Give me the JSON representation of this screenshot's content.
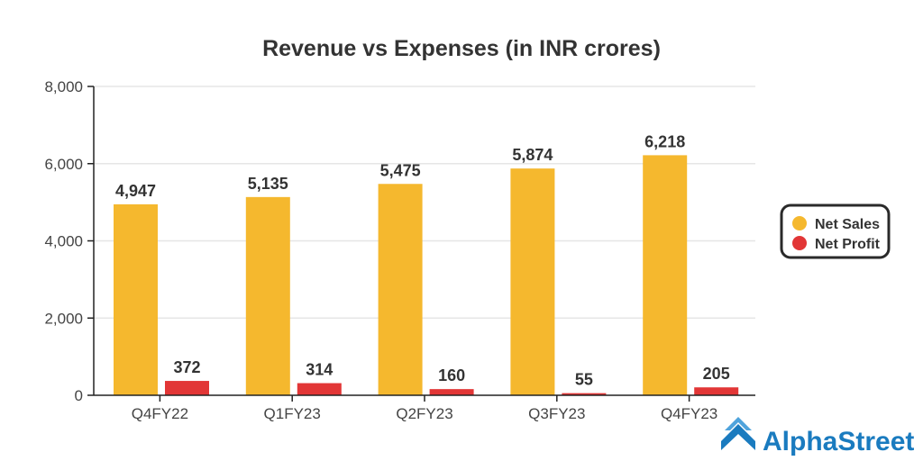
{
  "chart_data": {
    "type": "bar",
    "title": "Revenue vs Expenses (in INR crores)",
    "xlabel": "",
    "ylabel": "",
    "categories": [
      "Q4FY22",
      "Q1FY23",
      "Q2FY23",
      "Q3FY23",
      "Q4FY23"
    ],
    "series": [
      {
        "name": "Net Sales",
        "values": [
          4947,
          5135,
          5475,
          5874,
          6218
        ],
        "labels": [
          "4,947",
          "5,135",
          "5,475",
          "5,874",
          "6,218"
        ],
        "color": "#f5b82e"
      },
      {
        "name": "Net Profit",
        "values": [
          372,
          314,
          160,
          55,
          205
        ],
        "labels": [
          "372",
          "314",
          "160",
          "55",
          "205"
        ],
        "color": "#e23636"
      }
    ],
    "ylim": [
      0,
      8000
    ],
    "yticks": [
      0,
      2000,
      4000,
      6000,
      8000
    ],
    "ytick_labels": [
      "0",
      "2,000",
      "4,000",
      "6,000",
      "8,000"
    ],
    "grid": true,
    "legend_position": "right"
  },
  "brand": {
    "name": "AlphaStreet",
    "color": "#1a7bbf"
  }
}
